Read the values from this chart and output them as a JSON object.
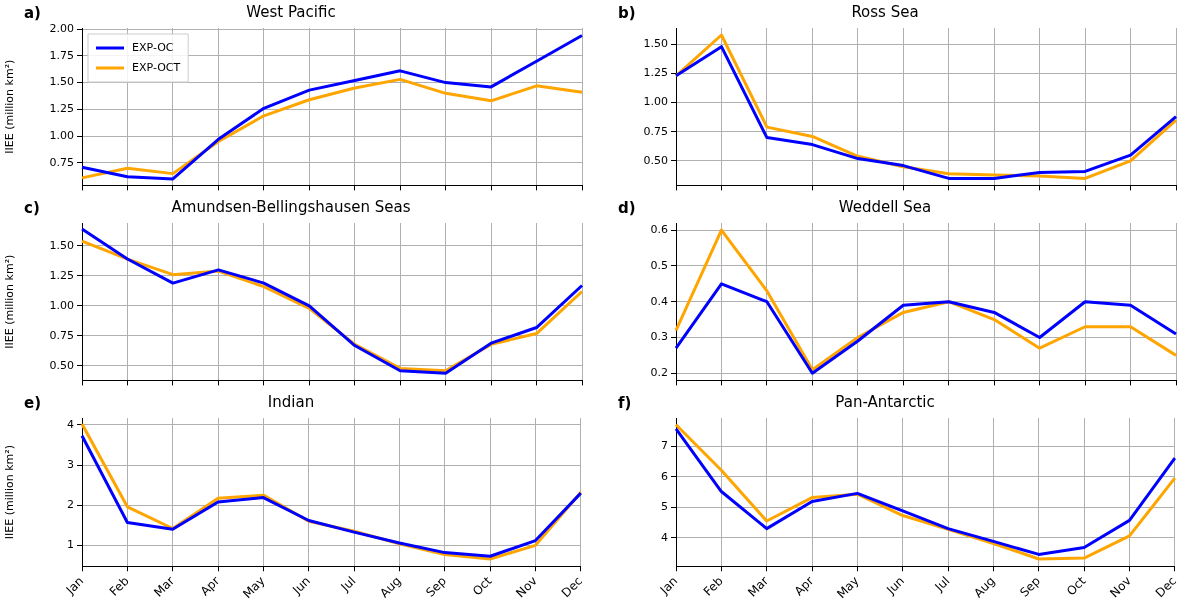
{
  "chart_data": [
    {
      "type": "line",
      "title": "West Pacific",
      "ylabel": "IIEE (million km²)",
      "annotations": [
        "a)"
      ],
      "categories": [
        null,
        null,
        null,
        null,
        null,
        null,
        null,
        null,
        null,
        null,
        null,
        null
      ],
      "series": [
        {
          "name": "EXP-OC",
          "color": "#0000ff",
          "values": [
            0.71,
            0.62,
            0.6,
            0.97,
            1.26,
            1.43,
            1.52,
            1.61,
            1.5,
            1.46,
            1.7,
            1.94
          ]
        },
        {
          "name": "EXP-OCT",
          "color": "#ffa500",
          "values": [
            0.61,
            0.7,
            0.65,
            0.95,
            1.19,
            1.34,
            1.45,
            1.53,
            1.4,
            1.33,
            1.47,
            1.41
          ]
        }
      ],
      "ylim": [
        0.54,
        2.01
      ],
      "yticks": [
        {
          "value": 0.75,
          "label": "0.75"
        },
        {
          "value": 1.0,
          "label": "1.00"
        },
        {
          "value": 1.25,
          "label": "1.25"
        },
        {
          "value": 1.5,
          "label": "1.50"
        },
        {
          "value": 1.75,
          "label": "1.75"
        },
        {
          "value": 2.0,
          "label": "2.00"
        }
      ],
      "grid": true,
      "legend": "top left",
      "tick_labels": "y"
    },
    {
      "type": "line",
      "title": "Ross Sea",
      "annotations": [
        "b)"
      ],
      "categories": [
        null,
        null,
        null,
        null,
        null,
        null,
        null,
        null,
        null,
        null,
        null,
        null
      ],
      "series": [
        {
          "color": "#0000ff",
          "values": [
            1.23,
            1.48,
            0.7,
            0.64,
            0.52,
            0.46,
            0.35,
            0.35,
            0.4,
            0.41,
            0.55,
            0.88
          ]
        },
        {
          "color": "#ffa500",
          "values": [
            1.23,
            1.58,
            0.79,
            0.71,
            0.54,
            0.45,
            0.39,
            0.38,
            0.37,
            0.35,
            0.5,
            0.85
          ]
        }
      ],
      "ylim": [
        0.29,
        1.64
      ],
      "yticks": [
        {
          "value": 0.5,
          "label": "0.50"
        },
        {
          "value": 0.75,
          "label": "0.75"
        },
        {
          "value": 1.0,
          "label": "1.00"
        },
        {
          "value": 1.25,
          "label": "1.25"
        },
        {
          "value": 1.5,
          "label": "1.50"
        }
      ],
      "grid": true,
      "tick_labels": "y"
    },
    {
      "type": "line",
      "title": "Amundsen-Bellingshausen Seas",
      "ylabel": "IIEE (million km²)",
      "annotations": [
        "c)"
      ],
      "categories": [
        null,
        null,
        null,
        null,
        null,
        null,
        null,
        null,
        null,
        null,
        null,
        null
      ],
      "series": [
        {
          "color": "#0000ff",
          "values": [
            1.64,
            1.39,
            1.19,
            1.3,
            1.19,
            1.0,
            0.67,
            0.46,
            0.44,
            0.69,
            0.82,
            1.17
          ]
        },
        {
          "color": "#ffa500",
          "values": [
            1.54,
            1.39,
            1.26,
            1.29,
            1.16,
            0.98,
            0.68,
            0.48,
            0.46,
            0.68,
            0.77,
            1.12
          ]
        }
      ],
      "ylim": [
        0.38,
        1.69
      ],
      "yticks": [
        {
          "value": 0.5,
          "label": "0.50"
        },
        {
          "value": 0.75,
          "label": "0.75"
        },
        {
          "value": 1.0,
          "label": "1.00"
        },
        {
          "value": 1.25,
          "label": "1.25"
        },
        {
          "value": 1.5,
          "label": "1.50"
        }
      ],
      "grid": true,
      "tick_labels": "y"
    },
    {
      "type": "line",
      "title": "Weddell Sea",
      "annotations": [
        "d)"
      ],
      "categories": [
        null,
        null,
        null,
        null,
        null,
        null,
        null,
        null,
        null,
        null,
        null,
        null
      ],
      "series": [
        {
          "color": "#0000ff",
          "values": [
            0.27,
            0.45,
            0.4,
            0.2,
            0.29,
            0.39,
            0.4,
            0.37,
            0.3,
            0.4,
            0.39,
            0.31
          ]
        },
        {
          "color": "#ffa500",
          "values": [
            0.32,
            0.6,
            0.43,
            0.21,
            0.3,
            0.37,
            0.4,
            0.35,
            0.27,
            0.33,
            0.33,
            0.25
          ]
        }
      ],
      "ylim": [
        0.18,
        0.62
      ],
      "yticks": [
        0.2,
        0.3,
        0.4,
        0.5,
        0.6
      ],
      "grid": true,
      "tick_labels": "y"
    },
    {
      "type": "line",
      "title": "Indian",
      "ylabel": "IIEE (million km²)",
      "annotations": [
        "e)"
      ],
      "categories": [
        "Jan",
        "Feb",
        "Mar",
        "Apr",
        "May",
        "Jun",
        "Jul",
        "Aug",
        "Sep",
        "Oct",
        "Nov",
        "Dec"
      ],
      "series": [
        {
          "color": "#0000ff",
          "values": [
            3.73,
            1.57,
            1.4,
            2.08,
            2.19,
            1.62,
            1.33,
            1.06,
            0.82,
            0.73,
            1.12,
            2.3
          ]
        },
        {
          "color": "#ffa500",
          "values": [
            4.02,
            1.96,
            1.42,
            2.17,
            2.25,
            1.6,
            1.35,
            1.04,
            0.77,
            0.66,
            1.0,
            2.32
          ]
        }
      ],
      "ylim": [
        0.48,
        4.17
      ],
      "yticks": [
        1,
        2,
        3,
        4
      ],
      "grid": true
    },
    {
      "type": "line",
      "title": "Pan-Antarctic",
      "annotations": [
        "f)"
      ],
      "categories": [
        "Jan",
        "Feb",
        "Mar",
        "Apr",
        "May",
        "Jun",
        "Jul",
        "Aug",
        "Sep",
        "Oct",
        "Nov",
        "Dec"
      ],
      "series": [
        {
          "color": "#0000ff",
          "values": [
            7.58,
            5.52,
            4.3,
            5.19,
            5.46,
            4.88,
            4.3,
            3.88,
            3.45,
            3.68,
            4.57,
            6.62
          ]
        },
        {
          "color": "#ffa500",
          "values": [
            7.72,
            6.22,
            4.55,
            5.32,
            5.43,
            4.73,
            4.28,
            3.81,
            3.3,
            3.33,
            4.06,
            5.96
          ]
        }
      ],
      "ylim": [
        3.06,
        7.94
      ],
      "yticks": [
        4,
        5,
        6,
        7
      ],
      "grid": true
    }
  ]
}
